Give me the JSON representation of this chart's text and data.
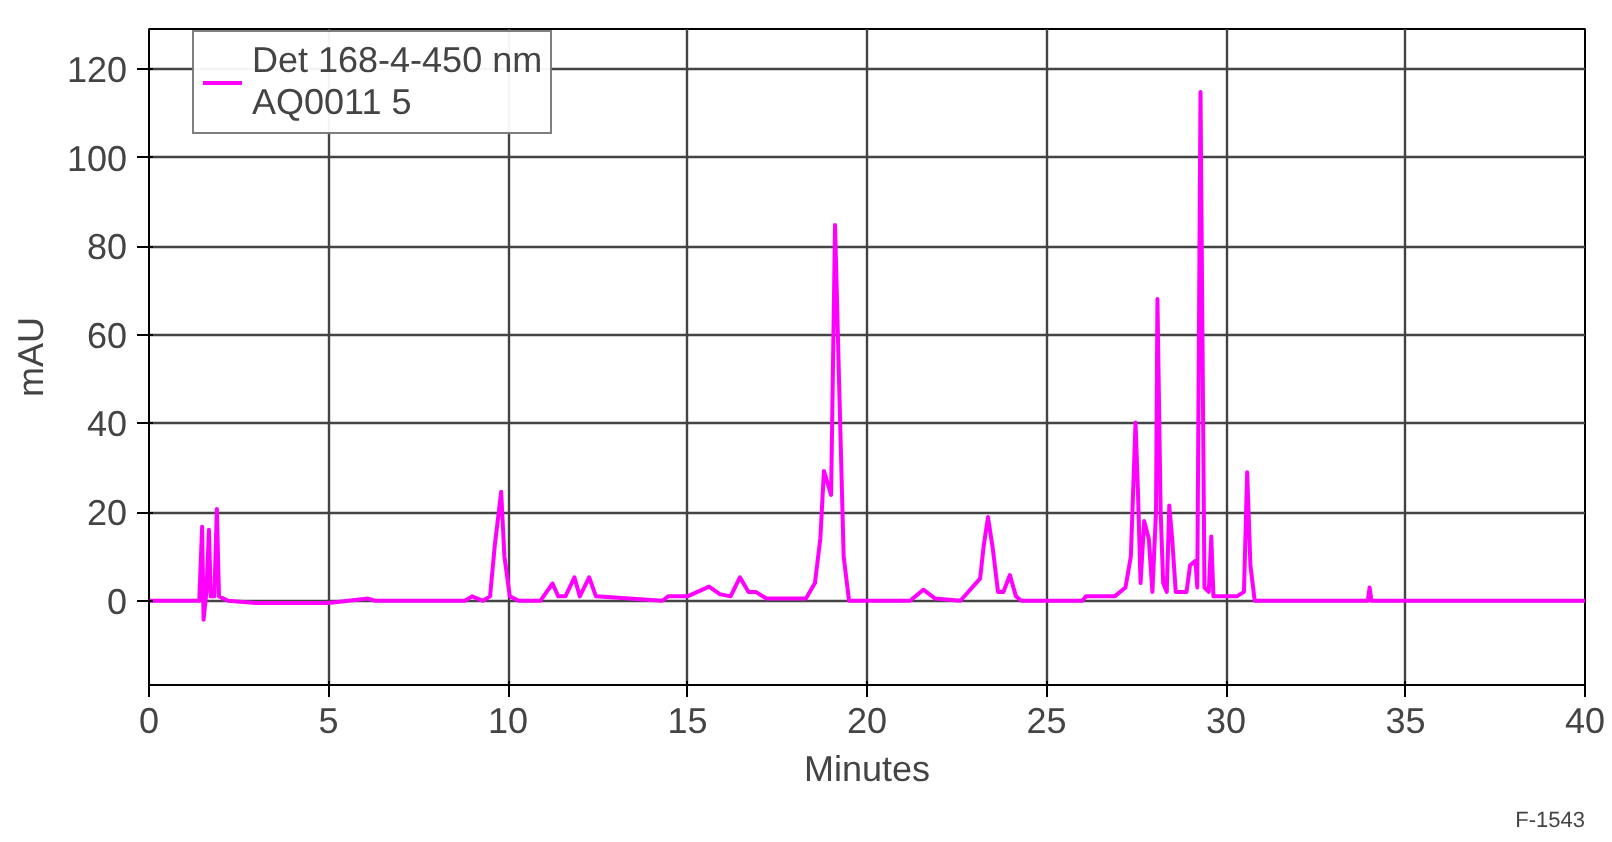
{
  "chart_data": {
    "type": "line",
    "xlabel": "Minutes",
    "ylabel": "mAU",
    "xlim": [
      0,
      40
    ],
    "xticks": [
      0,
      5,
      10,
      15,
      20,
      25,
      30,
      35,
      40
    ],
    "ylim": [
      -19,
      129
    ],
    "yticks": [
      0,
      20,
      40,
      60,
      80,
      100,
      120
    ],
    "grid": true,
    "legend": "top left",
    "marker": "none",
    "line_style": "solid",
    "annotations": [
      "F-1543"
    ],
    "series": [
      {
        "name": "Det 168-4-450 nm\nAQ0011 5",
        "color": "#ff00ff",
        "x": [
          0,
          1.2,
          1.4,
          1.48,
          1.52,
          1.6,
          1.67,
          1.72,
          1.82,
          1.89,
          1.95,
          2.2,
          3,
          5,
          6.1,
          6.3,
          8.8,
          9,
          9.3,
          9.5,
          9.63,
          9.81,
          9.9,
          10.05,
          10.3,
          10.9,
          11.24,
          11.4,
          11.6,
          11.85,
          12.0,
          12.26,
          12.45,
          14.3,
          14.46,
          15,
          15.6,
          15.9,
          16.2,
          16.46,
          16.7,
          16.9,
          17.2,
          18.3,
          18.55,
          18.7,
          18.8,
          19.0,
          19.11,
          19.24,
          19.35,
          19.5,
          21.2,
          21.57,
          21.9,
          22.6,
          23.15,
          23.25,
          23.37,
          23.5,
          23.65,
          23.8,
          23.98,
          24.15,
          24.3,
          26,
          26.1,
          26.9,
          27.2,
          27.35,
          27.48,
          27.55,
          27.62,
          27.72,
          27.85,
          27.95,
          28.05,
          28.09,
          28.18,
          28.25,
          28.35,
          28.42,
          28.5,
          28.6,
          28.9,
          29.0,
          29.15,
          29.2,
          29.29,
          29.4,
          29.52,
          29.59,
          29.65,
          30.3,
          30.5,
          30.59,
          30.68,
          30.8,
          33.95,
          34.0,
          34.05,
          40
        ],
        "values": [
          0,
          0,
          0,
          16.7,
          -4.3,
          2,
          16,
          1,
          1,
          20.7,
          1,
          0,
          -0.5,
          -0.5,
          0.5,
          0,
          0,
          1,
          0,
          1,
          12.3,
          24.6,
          10,
          1,
          0,
          0,
          3.9,
          1,
          1,
          5.3,
          1,
          5.3,
          1,
          0,
          1,
          1,
          3.2,
          1.5,
          1,
          5.3,
          2,
          2,
          0.5,
          0.5,
          4,
          14,
          29.3,
          23.9,
          84.8,
          44,
          10,
          0,
          0,
          2.5,
          0.5,
          0,
          5,
          12.3,
          18.9,
          12,
          2,
          2,
          5.8,
          1,
          0,
          0,
          1,
          1,
          3,
          10,
          40.2,
          24,
          4,
          18,
          14,
          2,
          20,
          68.1,
          20,
          4,
          2,
          21.5,
          14,
          2,
          2,
          8,
          9,
          3,
          114.8,
          3,
          2,
          14.5,
          1,
          1,
          2,
          29,
          8,
          0,
          0,
          3,
          0,
          0
        ]
      }
    ]
  }
}
